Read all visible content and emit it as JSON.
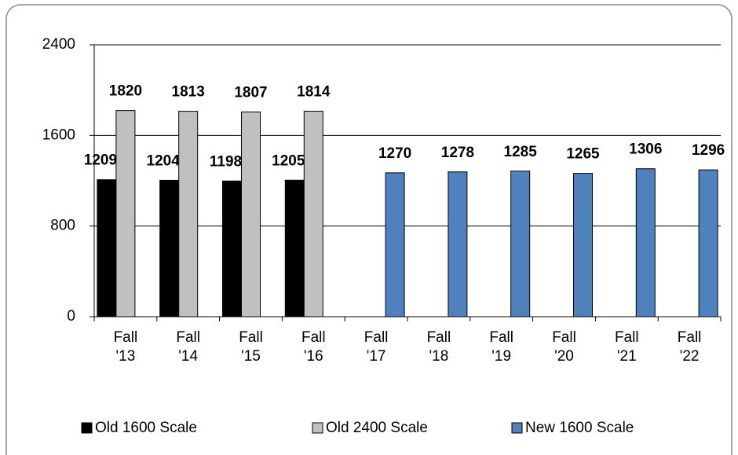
{
  "chart_data": {
    "type": "bar",
    "categories": [
      "Fall '13",
      "Fall '14",
      "Fall '15",
      "Fall '16",
      "Fall '17",
      "Fall '18",
      "Fall '19",
      "Fall '20",
      "Fall '21",
      "Fall '22"
    ],
    "series": [
      {
        "name": "Old 1600 Scale",
        "color": "#000000",
        "values": [
          1209,
          1204,
          1198,
          1205,
          null,
          null,
          null,
          null,
          null,
          null
        ]
      },
      {
        "name": "Old 2400 Scale",
        "color": "#c0c0c0",
        "values": [
          1820,
          1813,
          1807,
          1814,
          null,
          null,
          null,
          null,
          null,
          null
        ]
      },
      {
        "name": "New 1600 Scale",
        "color": "#4f81bd",
        "values": [
          null,
          null,
          null,
          null,
          1270,
          1278,
          1285,
          1265,
          1306,
          1296
        ]
      }
    ],
    "ylim": [
      0,
      2400
    ],
    "yticks": [
      0,
      800,
      1600,
      2400
    ],
    "grid": true,
    "legend": "bottom"
  }
}
